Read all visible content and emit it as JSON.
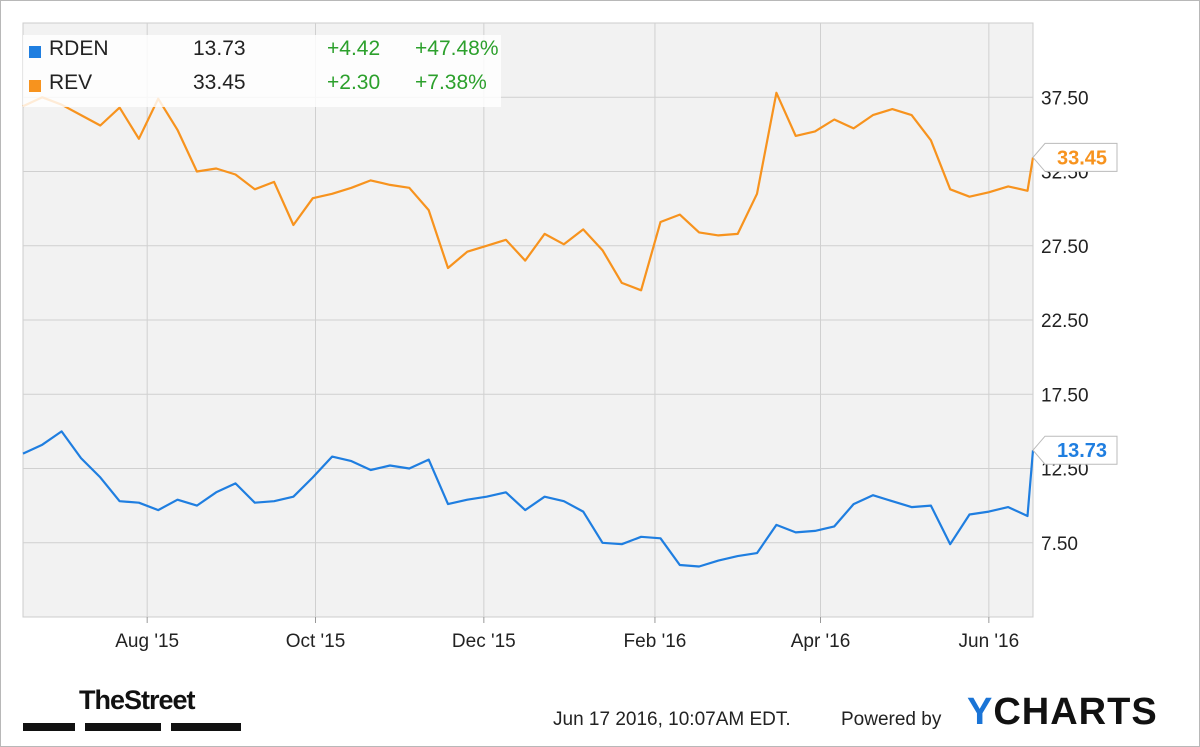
{
  "chart_data": {
    "type": "line",
    "x_ticks": [
      "Aug '15",
      "Oct '15",
      "Dec '15",
      "Feb '16",
      "Apr '16",
      "Jun '16"
    ],
    "y_ticks": [
      "37.50",
      "32.50",
      "27.50",
      "22.50",
      "17.50",
      "12.50",
      "7.50"
    ],
    "ylim": [
      2.5,
      42.5
    ],
    "grid": true,
    "legend_position": "top-left",
    "series": [
      {
        "name": "RDEN",
        "color": "#1f7ee0",
        "last_price": "13.73",
        "change": "+4.42",
        "change_pct": "+47.48%",
        "x": [
          "2015-06-17",
          "2015-06-24",
          "2015-07-01",
          "2015-07-08",
          "2015-07-15",
          "2015-07-22",
          "2015-07-29",
          "2015-08-05",
          "2015-08-12",
          "2015-08-19",
          "2015-08-26",
          "2015-09-02",
          "2015-09-09",
          "2015-09-16",
          "2015-09-23",
          "2015-09-30",
          "2015-10-07",
          "2015-10-14",
          "2015-10-21",
          "2015-10-28",
          "2015-11-04",
          "2015-11-11",
          "2015-11-18",
          "2015-11-25",
          "2015-12-02",
          "2015-12-09",
          "2015-12-16",
          "2015-12-23",
          "2015-12-30",
          "2016-01-06",
          "2016-01-13",
          "2016-01-20",
          "2016-01-27",
          "2016-02-03",
          "2016-02-10",
          "2016-02-17",
          "2016-02-24",
          "2016-03-02",
          "2016-03-09",
          "2016-03-16",
          "2016-03-23",
          "2016-03-30",
          "2016-04-06",
          "2016-04-13",
          "2016-04-20",
          "2016-04-27",
          "2016-05-04",
          "2016-05-11",
          "2016-05-18",
          "2016-05-25",
          "2016-06-01",
          "2016-06-08",
          "2016-06-15",
          "2016-06-17"
        ],
        "values": [
          13.5,
          14.1,
          15.0,
          13.2,
          11.9,
          10.3,
          10.2,
          9.7,
          10.4,
          10.0,
          10.9,
          11.5,
          10.2,
          10.3,
          10.6,
          11.9,
          13.3,
          13.0,
          12.4,
          12.7,
          12.5,
          13.1,
          10.1,
          10.4,
          10.6,
          10.9,
          9.7,
          10.6,
          10.3,
          9.6,
          7.5,
          7.4,
          7.9,
          7.8,
          6.0,
          5.9,
          6.3,
          6.6,
          6.8,
          8.7,
          8.2,
          8.3,
          8.6,
          10.1,
          10.7,
          10.3,
          9.9,
          10.0,
          7.4,
          9.4,
          9.6,
          9.9,
          9.3,
          13.73
        ]
      },
      {
        "name": "REV",
        "color": "#f7931e",
        "last_price": "33.45",
        "change": "+2.30",
        "change_pct": "+7.38%",
        "x": [
          "2015-06-17",
          "2015-06-24",
          "2015-07-01",
          "2015-07-08",
          "2015-07-15",
          "2015-07-22",
          "2015-07-29",
          "2015-08-05",
          "2015-08-12",
          "2015-08-19",
          "2015-08-26",
          "2015-09-02",
          "2015-09-09",
          "2015-09-16",
          "2015-09-23",
          "2015-09-30",
          "2015-10-07",
          "2015-10-14",
          "2015-10-21",
          "2015-10-28",
          "2015-11-04",
          "2015-11-11",
          "2015-11-18",
          "2015-11-25",
          "2015-12-02",
          "2015-12-09",
          "2015-12-16",
          "2015-12-23",
          "2015-12-30",
          "2016-01-06",
          "2016-01-13",
          "2016-01-20",
          "2016-01-27",
          "2016-02-03",
          "2016-02-10",
          "2016-02-17",
          "2016-02-24",
          "2016-03-02",
          "2016-03-09",
          "2016-03-16",
          "2016-03-23",
          "2016-03-30",
          "2016-04-06",
          "2016-04-13",
          "2016-04-20",
          "2016-04-27",
          "2016-05-04",
          "2016-05-11",
          "2016-05-18",
          "2016-05-25",
          "2016-06-01",
          "2016-06-08",
          "2016-06-15",
          "2016-06-17"
        ],
        "values": [
          36.9,
          37.5,
          37.0,
          36.3,
          35.6,
          36.8,
          34.7,
          37.4,
          35.3,
          32.5,
          32.7,
          32.3,
          31.3,
          31.8,
          28.9,
          30.7,
          31.0,
          31.4,
          31.9,
          31.6,
          31.4,
          29.9,
          26.0,
          27.1,
          27.5,
          27.9,
          26.5,
          28.3,
          27.6,
          28.6,
          27.2,
          25.0,
          24.5,
          29.1,
          29.6,
          28.4,
          28.2,
          28.3,
          31.0,
          37.8,
          34.9,
          35.2,
          36.0,
          35.4,
          36.3,
          36.7,
          36.3,
          34.6,
          31.3,
          30.8,
          31.1,
          31.5,
          31.2,
          33.45
        ]
      }
    ]
  },
  "labels": {
    "rden_value_tag": "13.73",
    "rev_value_tag": "33.45"
  },
  "footer": {
    "brand_left": "TheStreet",
    "timestamp": "Jun 17 2016, 10:07AM EDT.",
    "powered_by": "Powered by",
    "brand_right_y": "Y",
    "brand_right_rest": "CHARTS"
  }
}
